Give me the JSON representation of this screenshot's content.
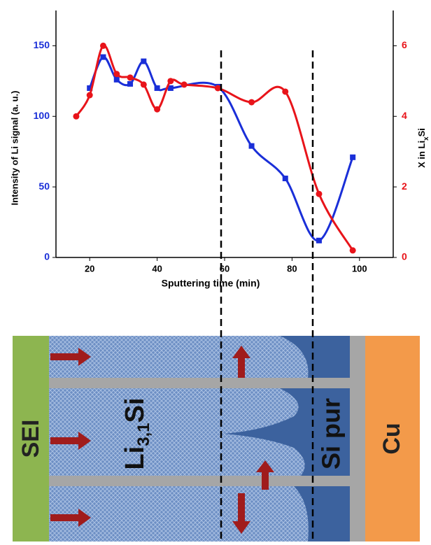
{
  "chart_data": {
    "type": "line",
    "xlabel": "Sputtering time (min)",
    "ylabel": "Intensity of Li signal (a. u.)",
    "y2label": [
      "X in Li",
      "x",
      "Si"
    ],
    "xlim": [
      10,
      110
    ],
    "xticks": [
      20,
      40,
      60,
      80,
      100
    ],
    "ylim": [
      0,
      175
    ],
    "yticks": [
      0,
      50,
      100,
      150
    ],
    "y2lim": [
      0,
      7
    ],
    "y2ticks": [
      0,
      2,
      4,
      6
    ],
    "series": [
      {
        "color": "#1a2fd8",
        "marker": "square",
        "x": [
          20,
          24,
          28,
          32,
          36,
          40,
          44,
          58,
          68,
          78,
          88,
          98
        ],
        "values": [
          120,
          142,
          126,
          123,
          139,
          120,
          120,
          121,
          79,
          56,
          12,
          71
        ]
      },
      {
        "color": "#e8141a",
        "marker": "circle",
        "axis": "y2",
        "x": [
          16,
          20,
          24,
          28,
          32,
          36,
          40,
          44,
          48,
          58,
          68,
          78,
          88,
          98
        ],
        "values": [
          4,
          4.6,
          6,
          5.2,
          5.1,
          4.9,
          4.2,
          5,
          4.9,
          4.8,
          4.4,
          4.7,
          1.8,
          0.2
        ]
      }
    ]
  },
  "diagram": {
    "sei": "SEI",
    "li": [
      "Li",
      "3,1",
      "Si"
    ],
    "si": "Si pur",
    "cu": "Cu"
  }
}
